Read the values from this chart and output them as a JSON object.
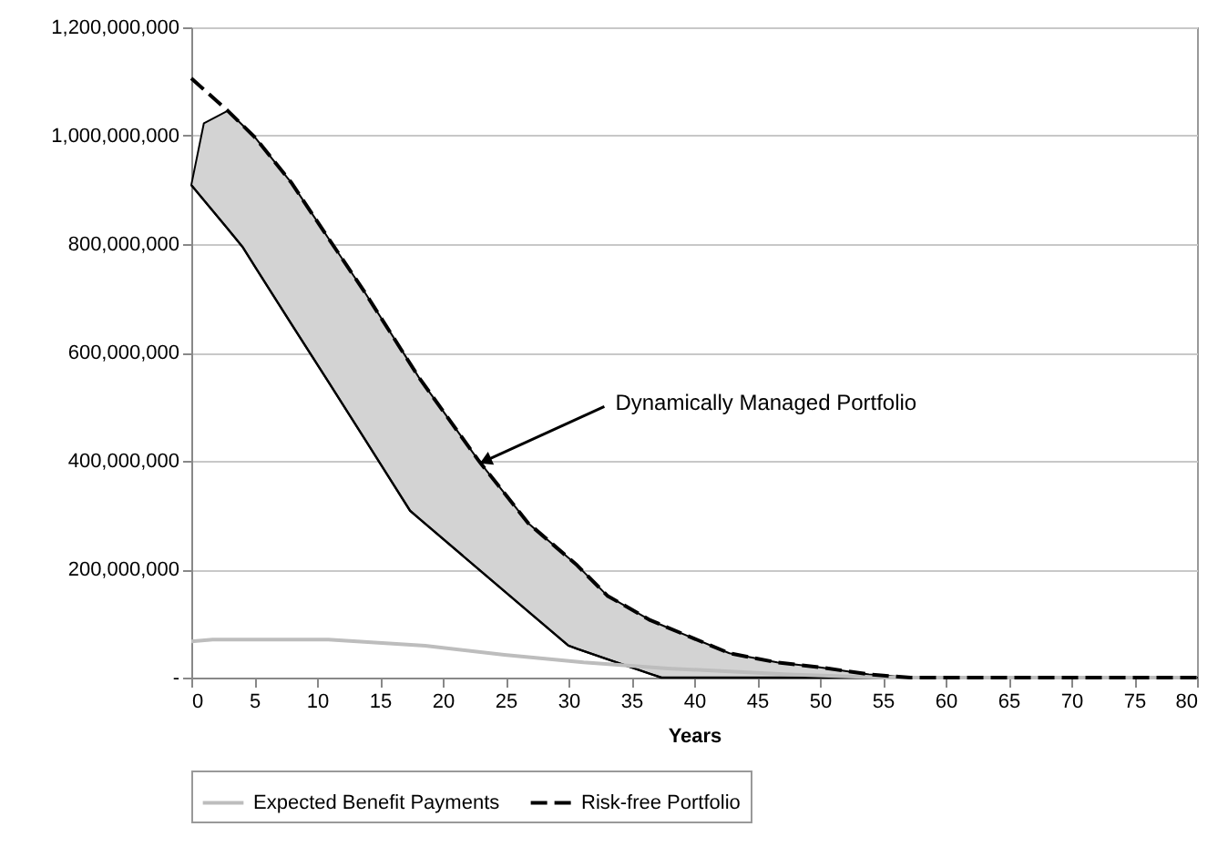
{
  "chart_data": {
    "type": "line",
    "xlabel": "Years",
    "xlim": [
      0,
      80
    ],
    "xticks": [
      0,
      5,
      10,
      15,
      20,
      25,
      30,
      35,
      40,
      45,
      50,
      55,
      60,
      65,
      70,
      75,
      80
    ],
    "ylim": [
      0,
      1200000000
    ],
    "yticks": [
      {
        "value": 0,
        "label": "-"
      },
      {
        "value": 200000000,
        "label": "200,000,000"
      },
      {
        "value": 400000000,
        "label": "400,000,000"
      },
      {
        "value": 600000000,
        "label": "600,000,000"
      },
      {
        "value": 800000000,
        "label": "800,000,000"
      },
      {
        "value": 1000000000,
        "label": "1,000,000,000"
      },
      {
        "value": 1200000000,
        "label": "1,200,000,000"
      }
    ],
    "grid": "y",
    "legend": "bottom",
    "series": [
      {
        "color": "#000000",
        "x": [
          0,
          1,
          2.9,
          4.1,
          5.1,
          8,
          10.9,
          13.8,
          17.4,
          18.1,
          22.9,
          26.8,
          30,
          30.7,
          33.1,
          36.5,
          37.4,
          39.9,
          42.8,
          46.6,
          50,
          53.9,
          57.2,
          80
        ],
        "upper": [
          909000000,
          1023000000,
          1046000000,
          1019000000,
          996000000,
          912000000,
          811000000,
          711000000,
          580000000,
          554000000,
          399000000,
          285000000,
          221000000,
          207000000,
          151000000,
          106000000,
          97000000,
          73000000,
          45000000,
          28000000,
          19000000,
          6000000,
          0,
          0
        ],
        "values": [
          909000000,
          881000000,
          828000000,
          794000000,
          757000000,
          651000000,
          546000000,
          440000000,
          308000000,
          294000000,
          199000000,
          122000000,
          59000000,
          53000000,
          34000000,
          7000000,
          0,
          0,
          0,
          0,
          0,
          0,
          0,
          0
        ],
        "lower": [
          909000000,
          881000000,
          828000000,
          794000000,
          757000000,
          651000000,
          546000000,
          440000000,
          308000000,
          294000000,
          199000000,
          122000000,
          59000000,
          53000000,
          34000000,
          7000000,
          0,
          0,
          0,
          0,
          0,
          0,
          0,
          0
        ]
      },
      {
        "name": "Expected Benefit Payments",
        "color": "#bdbdbd",
        "line_style": "solid",
        "x": [
          0,
          1.7,
          10.9,
          18.6,
          24.9,
          31.2,
          37.9,
          47.5,
          55,
          80
        ],
        "values": [
          67000000,
          70000000,
          70000000,
          59000000,
          42000000,
          28000000,
          17000000,
          6000000,
          0,
          0
        ]
      },
      {
        "name": "Risk-free Portfolio",
        "color": "#000000",
        "line_style": "dashed",
        "x": [
          0,
          2.9,
          5.1,
          8,
          10.9,
          13.8,
          18.1,
          22.9,
          26.8,
          30.7,
          33.1,
          36.5,
          39.9,
          42.8,
          46.6,
          50,
          53.9,
          57.2,
          80
        ],
        "values": [
          1106000000,
          1046000000,
          996000000,
          912000000,
          811000000,
          711000000,
          554000000,
          399000000,
          285000000,
          207000000,
          151000000,
          106000000,
          73000000,
          45000000,
          28000000,
          19000000,
          6000000,
          0,
          0
        ]
      }
    ],
    "annotations": [
      {
        "text": "Dynamically Managed Portfolio",
        "x": 23,
        "y": 396000000
      }
    ]
  }
}
